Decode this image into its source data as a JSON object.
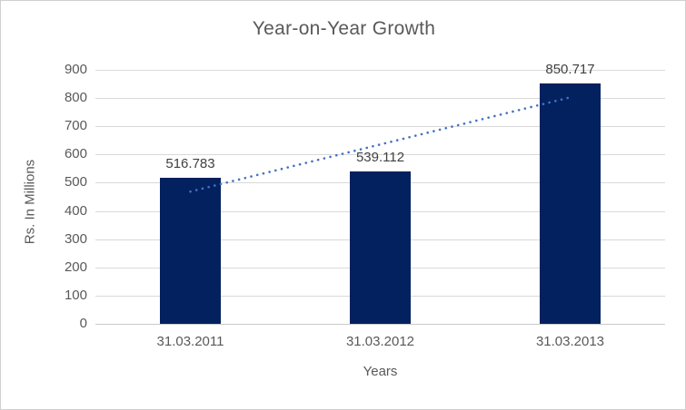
{
  "chart_data": {
    "type": "bar",
    "title": "Year-on-Year Growth",
    "categories": [
      "31.03.2011",
      "31.03.2012",
      "31.03.2013"
    ],
    "values": [
      516.783,
      539.112,
      850.717
    ],
    "data_labels": [
      "516.783",
      "539.112",
      "850.717"
    ],
    "xlabel": "Years",
    "ylabel": "Rs. In Millions",
    "ylim": [
      0,
      900
    ],
    "yticks": [
      0,
      100,
      200,
      300,
      400,
      500,
      600,
      700,
      800,
      900
    ],
    "grid": true,
    "legend": "none",
    "trendline": {
      "type": "linear",
      "style": "dotted",
      "start_value": 468.6,
      "end_value": 802.5
    },
    "colors": {
      "bar": "#02215e",
      "trendline": "#4472c4",
      "gridline": "#d9d9d9",
      "axis_line": "#c9c9c9",
      "axis_text": "#595959",
      "data_label": "#404040",
      "title_text": "#595959",
      "frame_border": "#cfcfcf",
      "background": "#ffffff"
    }
  }
}
